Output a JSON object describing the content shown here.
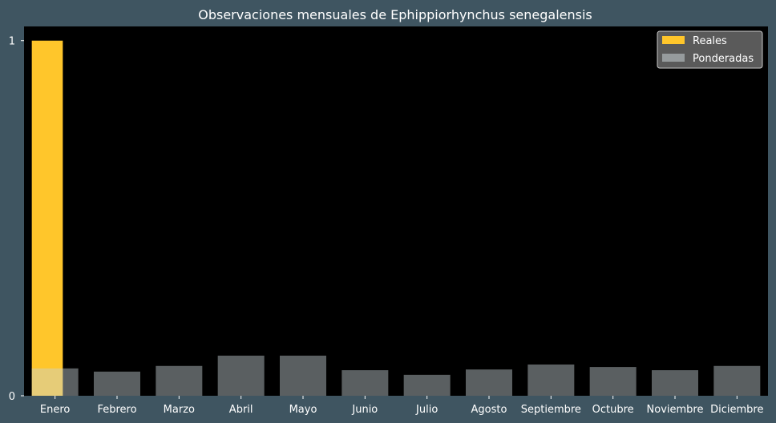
{
  "colors": {
    "page_background": "#3f5561",
    "plot_background": "#000000",
    "reales": "#ffc62b",
    "ponderadas": "#c8d2d6",
    "legend_background": "#5a5a5a",
    "legend_border": "#c8c8c8",
    "text": "#ffffff"
  },
  "chart_data": {
    "type": "bar",
    "title": "Observaciones mensuales de Ephippiorhynchus senegalensis",
    "xlabel": "",
    "ylabel": "",
    "categories": [
      "Enero",
      "Febrero",
      "Marzo",
      "Abril",
      "Mayo",
      "Junio",
      "Julio",
      "Agosto",
      "Septiembre",
      "Octubre",
      "Noviembre",
      "Diciembre"
    ],
    "series": [
      {
        "name": "Reales",
        "values": [
          1,
          0,
          0,
          0,
          0,
          0,
          0,
          0,
          0,
          0,
          0,
          0
        ]
      },
      {
        "name": "Ponderadas",
        "values": [
          0.077,
          0.068,
          0.084,
          0.113,
          0.113,
          0.072,
          0.059,
          0.074,
          0.088,
          0.081,
          0.072,
          0.084
        ]
      }
    ],
    "ylim": [
      0,
      1.04
    ],
    "yticks": [
      0,
      1
    ],
    "grid": false,
    "legend_position": "top-right"
  }
}
